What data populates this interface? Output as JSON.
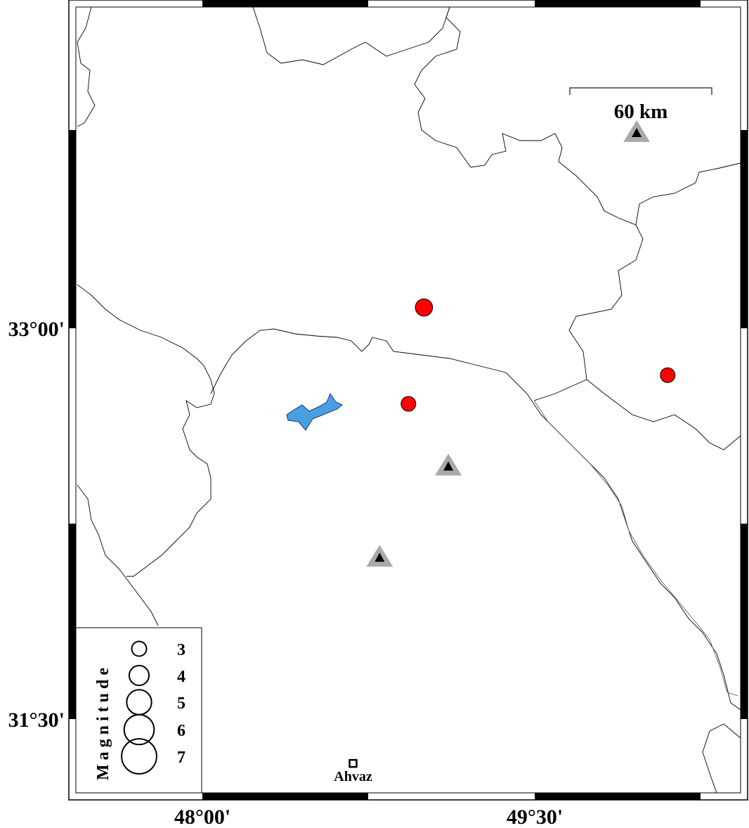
{
  "map": {
    "extent": {
      "lon": [
        47.429,
        50.429
      ],
      "lat": [
        31.217,
        34.233
      ]
    },
    "lon_ticks": [
      {
        "value": 48.0,
        "label": "48°00'"
      },
      {
        "value": 49.5,
        "label": "49°30'"
      }
    ],
    "lat_ticks": [
      {
        "value": 33.0,
        "label": "33°00'"
      },
      {
        "value": 31.5,
        "label": "31°30'"
      }
    ],
    "scale_bar": {
      "label": "60 km",
      "length_km": 60
    },
    "colors": {
      "earthquake": "#ff0000",
      "station_outer": "#aaaaaa",
      "station_inner": "#000000",
      "lake": "#4a9fe0"
    }
  },
  "earthquakes": [
    {
      "lon": 49.0,
      "lat": 33.08,
      "magnitude": 3.5
    },
    {
      "lon": 48.93,
      "lat": 32.71,
      "magnitude": 3.0
    },
    {
      "lon": 50.1,
      "lat": 32.82,
      "magnitude": 3.0
    }
  ],
  "stations": [
    {
      "lon": 49.96,
      "lat": 33.75
    },
    {
      "lon": 49.11,
      "lat": 32.47
    },
    {
      "lon": 48.8,
      "lat": 32.12
    }
  ],
  "cities": [
    {
      "name": "Ahvaz",
      "lon": 48.68,
      "lat": 31.33
    }
  ],
  "legend": {
    "title": "Magnitude",
    "items": [
      {
        "magnitude": 3,
        "label": "3"
      },
      {
        "magnitude": 4,
        "label": "4"
      },
      {
        "magnitude": 5,
        "label": "5"
      },
      {
        "magnitude": 6,
        "label": "6"
      },
      {
        "magnitude": 7,
        "label": "7"
      }
    ]
  }
}
